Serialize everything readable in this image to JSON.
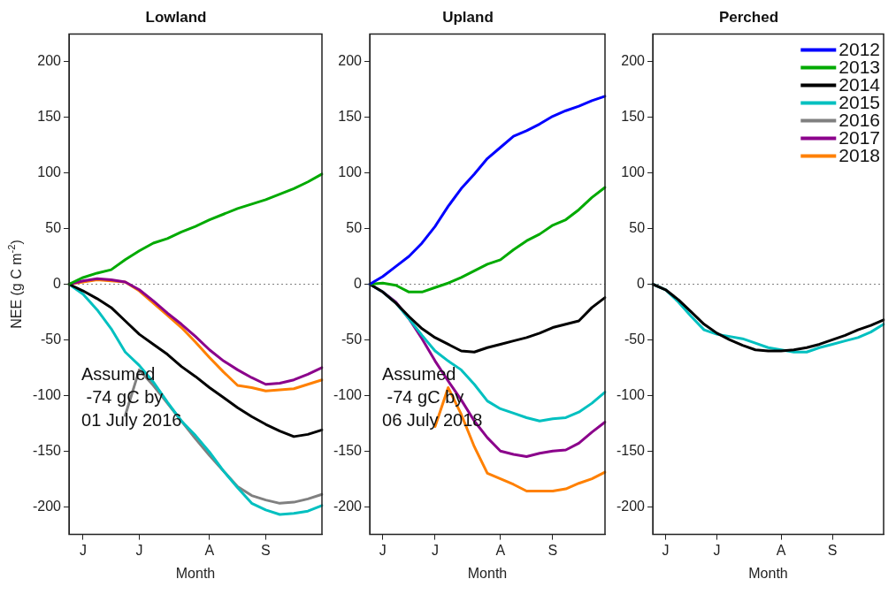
{
  "chart_data": [
    {
      "type": "line",
      "title": "Lowland",
      "xlabel": "Month",
      "ylabel": "NEE (g C m$^{-2}$)",
      "categories": [
        null,
        "J",
        null,
        null,
        null,
        "J",
        null,
        null,
        null,
        null,
        "A",
        null,
        null,
        null,
        "S",
        null,
        null,
        null,
        null
      ],
      "ylim": [
        -225,
        225
      ],
      "yticks": [
        -200,
        -150,
        -100,
        -50,
        0,
        50,
        100,
        150,
        200
      ],
      "ref_lines": [
        {
          "axis": "y",
          "value": 0,
          "color": "#808080",
          "line_style": "dotted"
        }
      ],
      "annotations": [
        "Assumed\n -74 gC by\n01 July 2016"
      ],
      "series": [
        {
          "color": "#00aa00",
          "values": [
            0,
            6,
            10,
            13,
            22,
            30,
            37,
            41,
            47,
            52,
            58,
            63,
            68,
            72,
            76,
            81,
            86,
            92,
            99
          ]
        },
        {
          "color": "#000000",
          "values": [
            0,
            -6,
            -13,
            -21,
            -33,
            -45,
            -54,
            -63,
            -74,
            -83,
            -93,
            -102,
            -111,
            -119,
            -126,
            -132,
            -137,
            -135,
            -131
          ]
        },
        {
          "color": "#00c0c0",
          "values": [
            0,
            -9,
            -23,
            -40,
            -61,
            -73,
            -88,
            -106,
            -123,
            -136,
            -151,
            -168,
            -183,
            -197,
            -203,
            -207,
            -206,
            -204,
            -199
          ]
        },
        {
          "color": "#808080",
          "values": [
            null,
            null,
            null,
            null,
            -118,
            -77,
            -91,
            -107,
            -123,
            -139,
            -154,
            -168,
            -182,
            -190,
            -194,
            -197,
            -196,
            -193,
            -189
          ]
        },
        {
          "color": "#8b008b",
          "values": [
            0,
            3,
            5,
            4,
            2,
            -5,
            -15,
            -26,
            -36,
            -47,
            -59,
            -69,
            -77,
            -84,
            -90,
            -89,
            -86,
            -81,
            -75
          ]
        },
        {
          "color": "#ff8000",
          "values": [
            0,
            2,
            4,
            3,
            2,
            -6,
            -17,
            -28,
            -39,
            -52,
            -66,
            -79,
            -91,
            -93,
            -96,
            -95,
            -94,
            -90,
            -86
          ]
        }
      ]
    },
    {
      "type": "line",
      "title": "Upland",
      "xlabel": "Month",
      "categories": [
        null,
        "J",
        null,
        null,
        null,
        "J",
        null,
        null,
        null,
        null,
        "A",
        null,
        null,
        null,
        "S",
        null,
        null,
        null,
        null
      ],
      "ylim": [
        -225,
        225
      ],
      "yticks": [
        -200,
        -150,
        -100,
        -50,
        0,
        50,
        100,
        150,
        200
      ],
      "ref_lines": [
        {
          "axis": "y",
          "value": 0,
          "color": "#808080",
          "line_style": "dotted"
        }
      ],
      "annotations": [
        "Assumed\n -74 gC by\n06 July 2018"
      ],
      "series": [
        {
          "color": "#0000ff",
          "values": [
            0,
            7,
            16,
            25,
            37,
            52,
            70,
            86,
            99,
            113,
            123,
            133,
            138,
            144,
            151,
            156,
            160,
            165,
            169
          ]
        },
        {
          "color": "#00aa00",
          "values": [
            0,
            1,
            -1,
            -7,
            -7,
            -3,
            1,
            6,
            12,
            18,
            22,
            31,
            39,
            45,
            53,
            58,
            67,
            78,
            87
          ]
        },
        {
          "color": "#000000",
          "values": [
            0,
            -7,
            -17,
            -29,
            -40,
            -48,
            -54,
            -60,
            -61,
            -57,
            -54,
            -51,
            -48,
            -44,
            -39,
            -36,
            -33,
            -21,
            -12
          ]
        },
        {
          "color": "#00c0c0",
          "values": [
            0,
            -7,
            -17,
            -31,
            -46,
            -60,
            -69,
            -77,
            -90,
            -105,
            -112,
            -116,
            -120,
            -123,
            -121,
            -120,
            -115,
            -107,
            -97
          ]
        },
        {
          "color": "#8b008b",
          "values": [
            0,
            -7,
            -16,
            -31,
            -49,
            -69,
            -87,
            -104,
            -123,
            -138,
            -150,
            -153,
            -155,
            -152,
            -150,
            -149,
            -143,
            -133,
            -124
          ]
        },
        {
          "color": "#ff8000",
          "values": [
            null,
            null,
            null,
            null,
            null,
            -128,
            -93,
            -117,
            -146,
            -170,
            -175,
            -180,
            -186,
            -186,
            -186,
            -184,
            -179,
            -175,
            -169
          ]
        }
      ]
    },
    {
      "type": "line",
      "title": "Perched",
      "xlabel": "Month",
      "legend": "top right",
      "categories": [
        null,
        "J",
        null,
        null,
        null,
        "J",
        null,
        null,
        null,
        null,
        "A",
        null,
        null,
        null,
        "S",
        null,
        null,
        null,
        null
      ],
      "ylim": [
        -225,
        225
      ],
      "yticks": [
        -200,
        -150,
        -100,
        -50,
        0,
        50,
        100,
        150,
        200
      ],
      "ref_lines": [
        {
          "axis": "y",
          "value": 0,
          "color": "#808080",
          "line_style": "dotted"
        }
      ],
      "series": [
        {
          "name": "2012",
          "color": "#0000ff",
          "values": [
            null,
            null,
            null,
            null,
            null,
            null,
            null,
            null,
            null,
            null,
            null,
            null,
            null,
            null,
            null,
            null,
            null,
            null,
            null
          ]
        },
        {
          "name": "2013",
          "color": "#00aa00",
          "values": [
            null,
            null,
            null,
            null,
            null,
            null,
            null,
            null,
            null,
            null,
            null,
            null,
            null,
            null,
            null,
            null,
            null,
            null,
            null
          ]
        },
        {
          "name": "2014",
          "color": "#000000",
          "values": [
            0,
            -5,
            -14,
            -25,
            -36,
            -44,
            -50,
            -55,
            -59,
            -60,
            -60,
            -59,
            -57,
            -54,
            -50,
            -46,
            -41,
            -37,
            -32
          ]
        },
        {
          "name": "2015",
          "color": "#00c0c0",
          "values": [
            0,
            -5,
            -16,
            -29,
            -41,
            -45,
            -47,
            -49,
            -53,
            -57,
            -59,
            -61,
            -61,
            -57,
            -54,
            -51,
            -48,
            -43,
            -36
          ]
        },
        {
          "name": "2016",
          "color": "#808080",
          "values": [
            null,
            null,
            null,
            null,
            null,
            null,
            null,
            null,
            null,
            null,
            null,
            null,
            null,
            null,
            null,
            null,
            null,
            null,
            null
          ]
        },
        {
          "name": "2017",
          "color": "#8b008b",
          "values": [
            null,
            null,
            null,
            null,
            null,
            null,
            null,
            null,
            null,
            null,
            null,
            null,
            null,
            null,
            null,
            null,
            null,
            null,
            null
          ]
        },
        {
          "name": "2018",
          "color": "#ff8000",
          "values": [
            null,
            null,
            null,
            null,
            null,
            null,
            null,
            null,
            null,
            null,
            null,
            null,
            null,
            null,
            null,
            null,
            null,
            null,
            null
          ]
        }
      ]
    }
  ]
}
